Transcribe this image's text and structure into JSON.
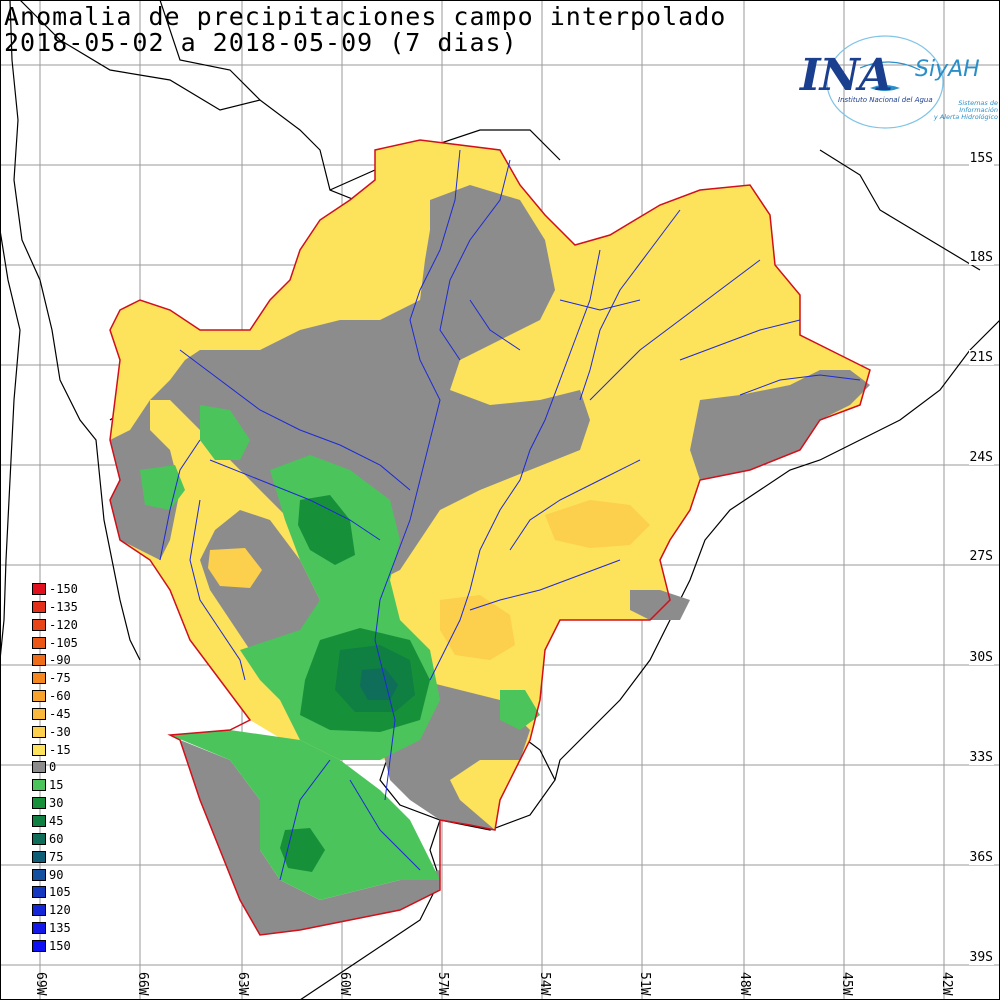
{
  "title": {
    "line1": "Anomalia de precipitaciones campo interpolado",
    "line2": "2018-05-02 a 2018-05-09 (7 dias)"
  },
  "logo": {
    "name": "INA",
    "system": "SiyAH",
    "subtitle": "Instituto Nacional del Agua",
    "system_subtitle_1": "Sistemas de Información",
    "system_subtitle_2": "y Alerta Hidrológico"
  },
  "latitude_labels": [
    "15S",
    "18S",
    "21S",
    "24S",
    "27S",
    "30S",
    "33S",
    "36S",
    "39S"
  ],
  "longitude_labels": [
    "69W",
    "66W",
    "63W",
    "60W",
    "57W",
    "54W",
    "51W",
    "48W",
    "45W",
    "42W"
  ],
  "legend": [
    {
      "label": "-150",
      "color": "#e0101e"
    },
    {
      "label": "-135",
      "color": "#e4301a"
    },
    {
      "label": "-120",
      "color": "#e84418"
    },
    {
      "label": "-105",
      "color": "#ec5616"
    },
    {
      "label": "-90",
      "color": "#ef6c18"
    },
    {
      "label": "-75",
      "color": "#f4881f"
    },
    {
      "label": "-60",
      "color": "#f7a22c"
    },
    {
      "label": "-45",
      "color": "#fab83c"
    },
    {
      "label": "-30",
      "color": "#fccf4c"
    },
    {
      "label": "-15",
      "color": "#fde25c"
    },
    {
      "label": "0",
      "color": "#8c8c8c"
    },
    {
      "label": "15",
      "color": "#4cc45c"
    },
    {
      "label": "30",
      "color": "#16913a"
    },
    {
      "label": "45",
      "color": "#0f7f42"
    },
    {
      "label": "60",
      "color": "#0e6e5a"
    },
    {
      "label": "75",
      "color": "#0f5e78"
    },
    {
      "label": "90",
      "color": "#1450a0"
    },
    {
      "label": "105",
      "color": "#1438c0"
    },
    {
      "label": "120",
      "color": "#1426d8"
    },
    {
      "label": "135",
      "color": "#1418e8"
    },
    {
      "label": "150",
      "color": "#1010f4"
    }
  ],
  "colors": {
    "background": "#ffffff",
    "grid": "#9a9a9a",
    "boundary": "#000000",
    "basin_outline": "#d0101a",
    "rivers": "#1e2ad6"
  }
}
